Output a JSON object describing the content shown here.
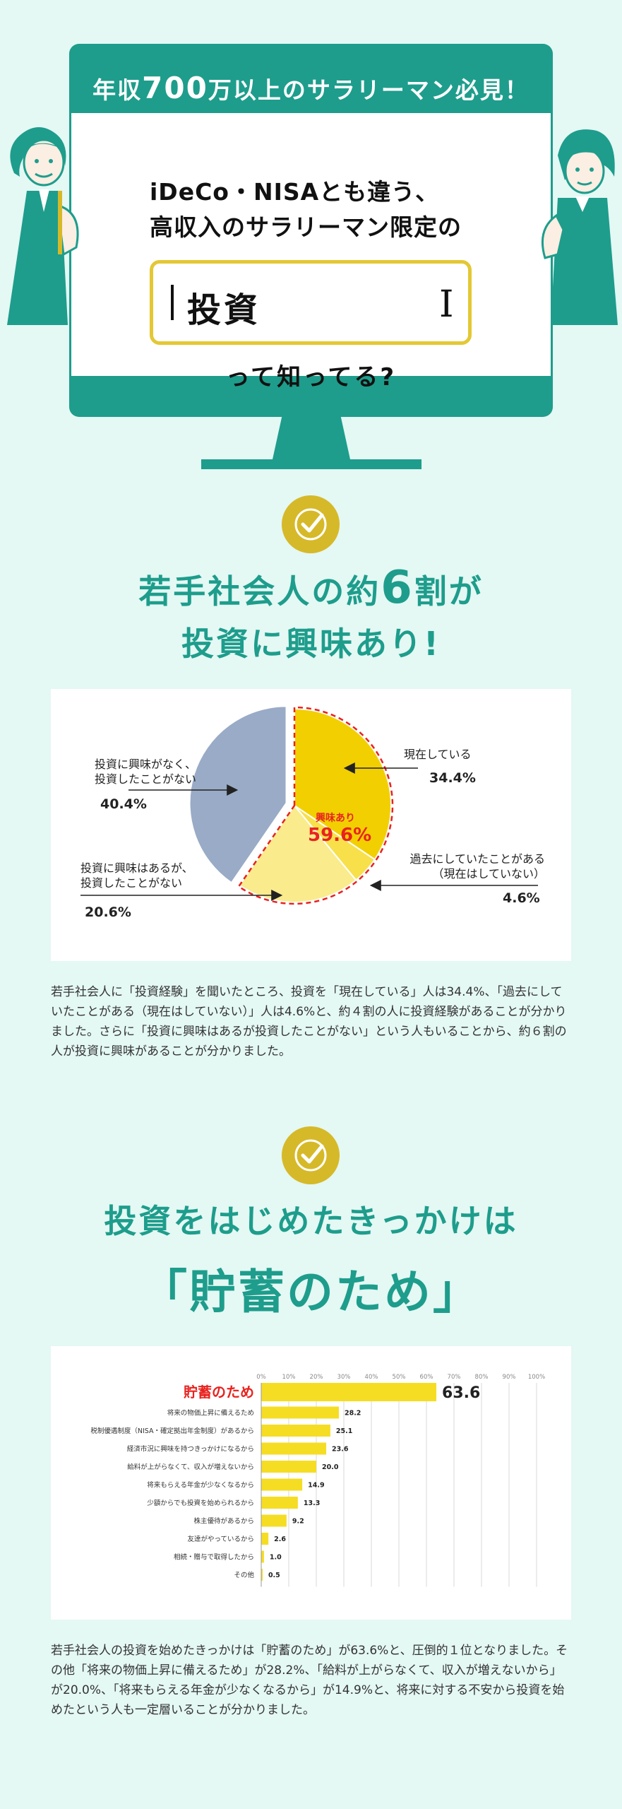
{
  "hero": {
    "headline_pre": "年収",
    "headline_big": "700",
    "headline_post": "万以上のサラリーマン必見！",
    "line1": "iDeCo・NISAとも違う、",
    "line2": "高収入のサラリーマン限定の",
    "search_text": "投資",
    "question": "って知ってる?"
  },
  "section1": {
    "title_line1_pre": "若手社会人の約",
    "title_line1_big": "6",
    "title_line1_post": "割が",
    "title_line2": "投資に興味あり!",
    "body": "若手社会人に「投資経験」を聞いたところ、投資を「現在している」人は34.4%、「過去にしていたことがある（現在はしていない）」人は4.6%と、約４割の人に投資経験があることが分かりました。さらに「投資に興味はあるが投資したことがない」という人もいることから、約６割の人が投資に興味があることが分かりました。"
  },
  "section2": {
    "title_line1": "投資をはじめたきっかけは",
    "title_line2": "「貯蓄のため」",
    "body": "若手社会人の投資を始めたきっかけは「貯蓄のため」が63.6%と、圧倒的１位となりました。その他「将来の物価上昇に備えるため」が28.2%、「給料が上がらなくて、収入が増えないから」が20.0%、「将来もらえる年金が少なくなるから」が14.9%と、将来に対する不安から投資を始めたという人も一定層いることが分かりました。"
  },
  "chart_data": [
    {
      "type": "pie",
      "slices": [
        {
          "label": "現在している",
          "value": 34.4,
          "display": "34.4%",
          "color": "#f2cf00"
        },
        {
          "label": "過去にしていたことがある（現在はしていない）",
          "label_line1": "過去にしていたことがある",
          "label_line2": "（現在はしていない）",
          "value": 4.6,
          "display": "4.6%",
          "color": "#f7e04a"
        },
        {
          "label": "投資に興味はあるが、投資したことがない",
          "label_line1": "投資に興味はあるが、",
          "label_line2": "投資したことがない",
          "value": 20.6,
          "display": "20.6%",
          "color": "#faeb8c"
        },
        {
          "label": "投資に興味がなく、投資したことがない",
          "label_line1": "投資に興味がなく、",
          "label_line2": "投資したことがない",
          "value": 40.4,
          "display": "40.4%",
          "color": "#99abc6"
        }
      ],
      "highlight_label": "興味あり",
      "highlight_value": "59.6%",
      "highlight_color": "#e8231f"
    },
    {
      "type": "bar",
      "orientation": "horizontal",
      "xlim": [
        0,
        100
      ],
      "ticks": [
        "0%",
        "10%",
        "20%",
        "30%",
        "40%",
        "50%",
        "60%",
        "70%",
        "80%",
        "90%",
        "100%"
      ],
      "categories": [
        "貯蓄のため",
        "将来の物価上昇に備えるため",
        "税制優遇制度（NISA・確定拠出年金制度）があるから",
        "経済市況に興味を持つきっかけになるから",
        "給料が上がらなくて、収入が増えないから",
        "将来もらえる年金が少なくなるから",
        "少額からでも投資を始められるから",
        "株主優待があるから",
        "友達がやっているから",
        "相続・贈与で取得したから",
        "その他"
      ],
      "values": [
        63.6,
        28.2,
        25.1,
        23.6,
        20.0,
        14.9,
        13.3,
        9.2,
        2.6,
        1.0,
        0.5
      ],
      "value_labels": [
        "63.6",
        "28.2",
        "25.1",
        "23.6",
        "20.0",
        "14.9",
        "13.3",
        "9.2",
        "2.6",
        "1.0",
        "0.5"
      ],
      "bar_color": "#f5dd24",
      "highlight_color": "#e8231f"
    }
  ],
  "colors": {
    "teal": "#1e9d8c",
    "yellow": "#e3c834",
    "background": "#e4f8f4"
  },
  "icons": [
    "check-icon",
    "cursor-ibeam-icon"
  ]
}
